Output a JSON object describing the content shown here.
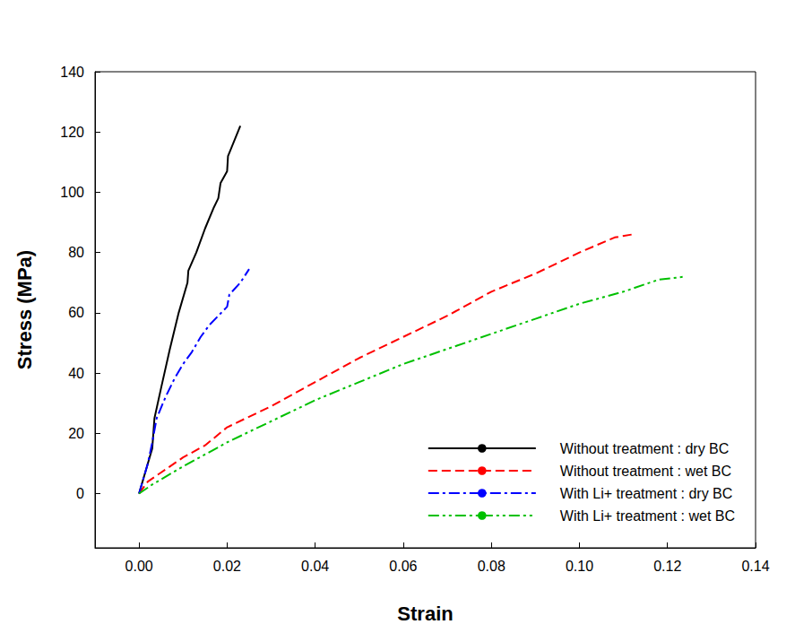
{
  "chart_data": {
    "type": "line",
    "x_label": "Strain",
    "y_label": "Stress (MPa)",
    "xlim": [
      -0.01,
      0.14
    ],
    "xticks": [
      {
        "value": 0,
        "label": "0.00"
      },
      0.02,
      0.04,
      0.06,
      0.08,
      {
        "value": 0.1,
        "label": "0.10"
      },
      0.12,
      0.14
    ],
    "ylim": [
      -18,
      140
    ],
    "yticks": [
      0,
      20,
      40,
      60,
      80,
      100,
      120,
      140
    ],
    "grid": false,
    "legend": "lower right",
    "series": [
      {
        "name": "Without treatment : dry BC",
        "color": "#000000",
        "line_style": "solid",
        "x": [
          0,
          0.003,
          0.0035,
          0.005,
          0.007,
          0.009,
          0.011,
          0.0112,
          0.013,
          0.015,
          0.017,
          0.018,
          0.0185,
          0.02,
          0.0202,
          0.023
        ],
        "values": [
          0,
          15,
          25,
          35,
          48,
          60,
          70,
          74,
          80,
          88,
          95,
          98,
          103,
          107,
          112,
          122
        ]
      },
      {
        "name": "Without treatment : wet BC",
        "color": "#ff0000",
        "line_style": "dashed",
        "x": [
          0,
          0.002,
          0.005,
          0.01,
          0.015,
          0.02,
          0.03,
          0.04,
          0.05,
          0.06,
          0.07,
          0.08,
          0.09,
          0.1,
          0.108,
          0.112
        ],
        "values": [
          0,
          4,
          7,
          12,
          16,
          22,
          29,
          37,
          45,
          52,
          59,
          67,
          73,
          80,
          85,
          86
        ]
      },
      {
        "name": "With Li+ treatment : dry BC",
        "color": "#0000ff",
        "line_style": "dashdot",
        "x": [
          0,
          0.002,
          0.003,
          0.004,
          0.006,
          0.008,
          0.01,
          0.012,
          0.014,
          0.016,
          0.018,
          0.02,
          0.0205,
          0.023,
          0.025
        ],
        "values": [
          0,
          10,
          17,
          25,
          32,
          38,
          43,
          47,
          52,
          56,
          59,
          62,
          66,
          70,
          74.5
        ]
      },
      {
        "name": "With Li+ treatment : wet BC",
        "color": "#00c000",
        "line_style": "dashdotdot",
        "x": [
          0,
          0.003,
          0.01,
          0.02,
          0.03,
          0.04,
          0.05,
          0.06,
          0.07,
          0.08,
          0.09,
          0.1,
          0.11,
          0.118,
          0.124
        ],
        "values": [
          0,
          3,
          9,
          17,
          24,
          31,
          37,
          43,
          48,
          53,
          58,
          63,
          67,
          71,
          72
        ]
      }
    ]
  }
}
